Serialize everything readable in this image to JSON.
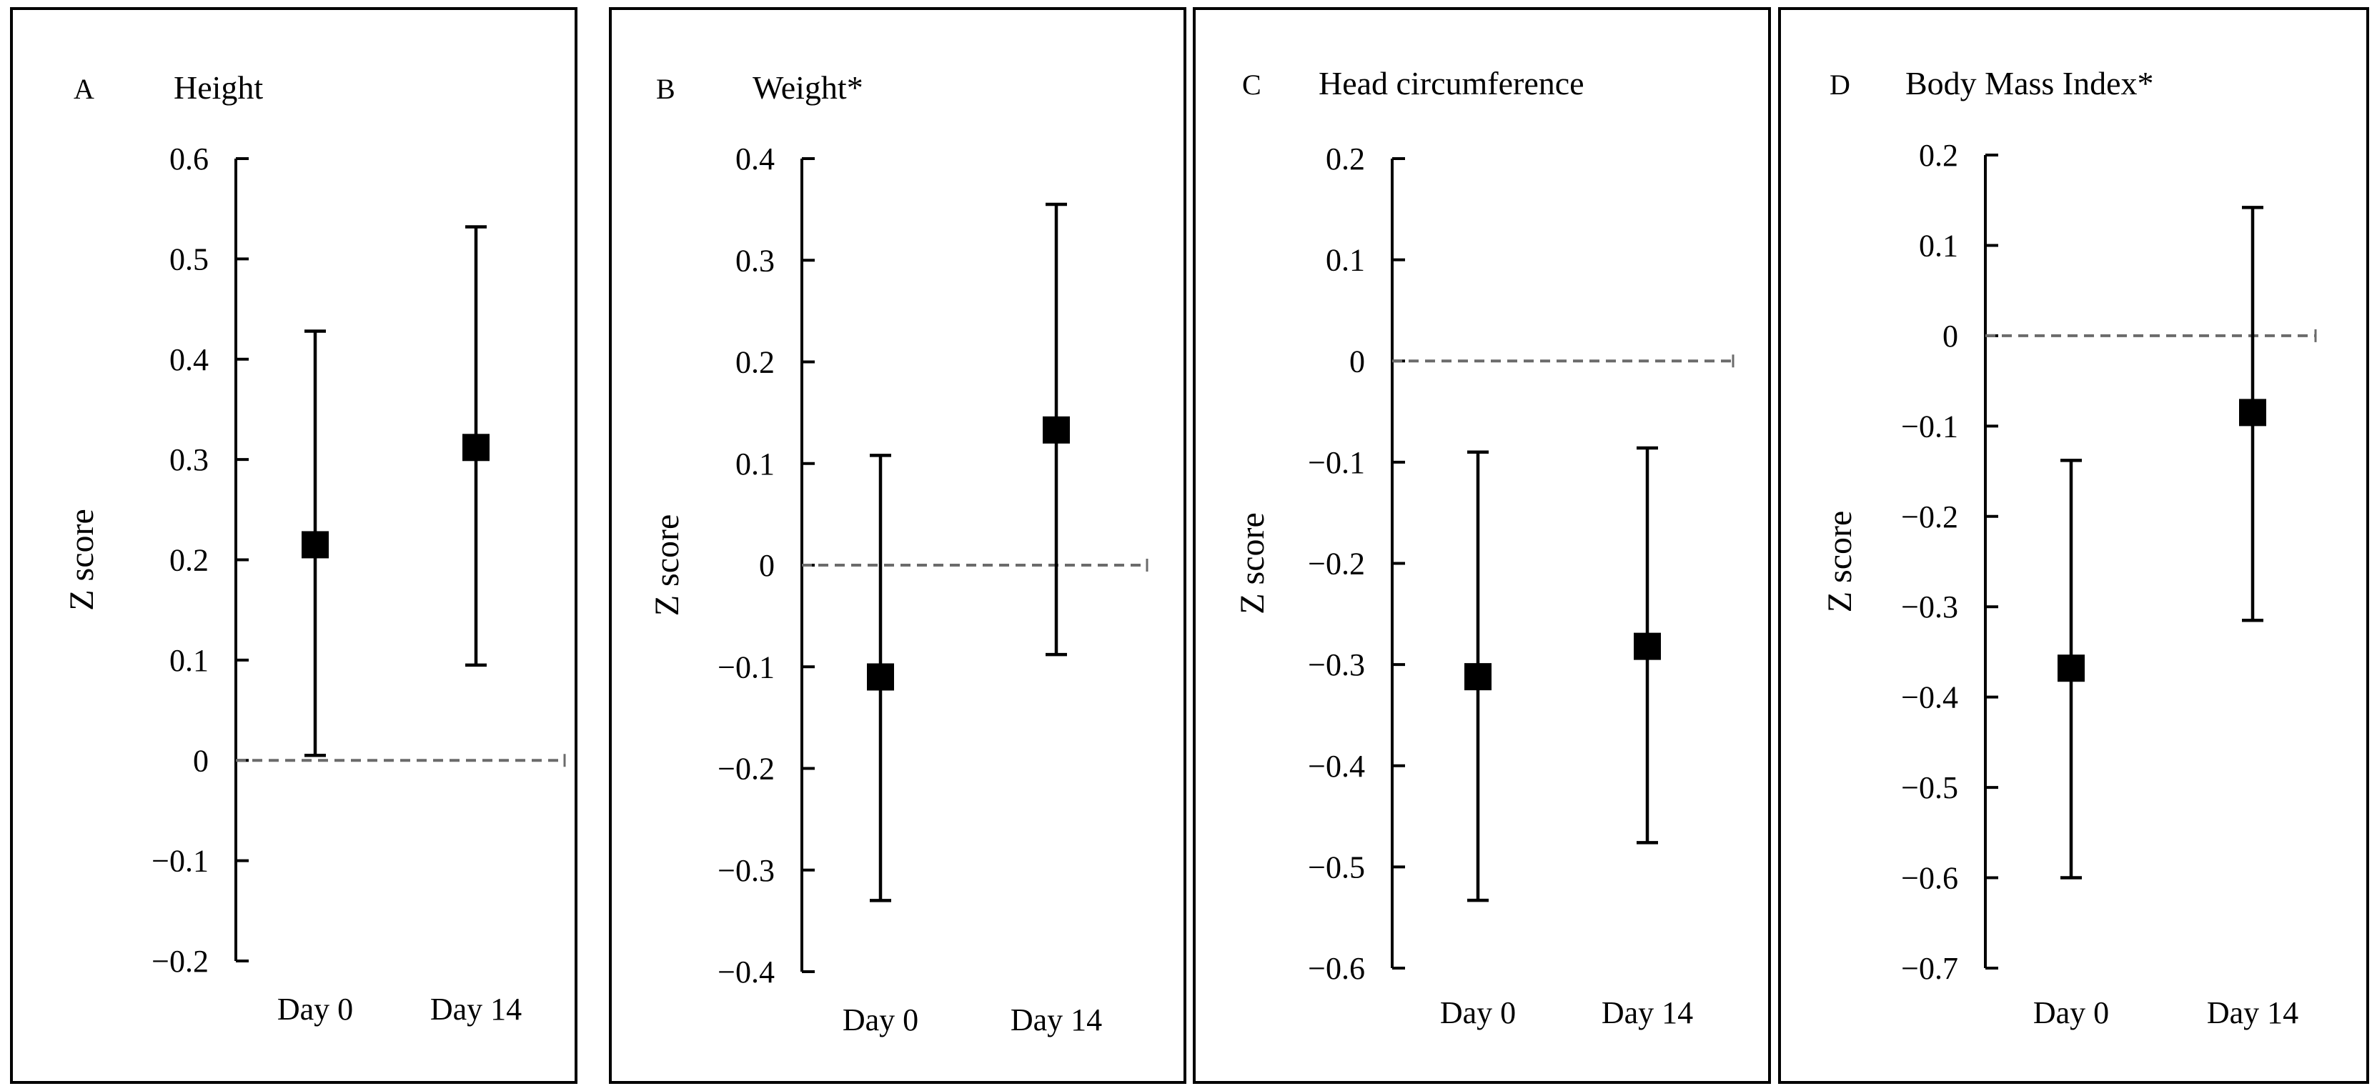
{
  "figure": {
    "y_axis_label": "Z score",
    "colors": {
      "marker": "#000000",
      "reference_line": "#6b6b6b",
      "frame": "#000000"
    }
  },
  "chart_data": [
    {
      "type": "scatter",
      "letter": "A",
      "title": "Height",
      "xlabel": "",
      "ylabel": "Z score",
      "categories": [
        "Day 0",
        "Day 14"
      ],
      "values": [
        0.215,
        0.312
      ],
      "ci_lower": [
        0.005,
        0.095
      ],
      "ci_upper": [
        0.428,
        0.532
      ],
      "ylim": [
        -0.2,
        0.6
      ],
      "yticks": [
        0.6,
        0.5,
        0.4,
        0.3,
        0.2,
        0.1,
        0,
        -0.1,
        -0.2
      ],
      "ytick_labels": [
        "0.6",
        "0.5",
        "0.4",
        "0.3",
        "0.2",
        "0.1",
        "0",
        "−0.1",
        "−0.2"
      ],
      "reference_line": 0
    },
    {
      "type": "scatter",
      "letter": "B",
      "title": "Weight*",
      "xlabel": "",
      "ylabel": "Z score",
      "categories": [
        "Day 0",
        "Day 14"
      ],
      "values": [
        -0.11,
        0.133
      ],
      "ci_lower": [
        -0.33,
        -0.088
      ],
      "ci_upper": [
        0.108,
        0.355
      ],
      "ylim": [
        -0.4,
        0.4
      ],
      "yticks": [
        0.4,
        0.3,
        0.2,
        0.1,
        0,
        -0.1,
        -0.2,
        -0.3,
        -0.4
      ],
      "ytick_labels": [
        "0.4",
        "0.3",
        "0.2",
        "0.1",
        "0",
        "−0.1",
        "−0.2",
        "−0.3",
        "−0.4"
      ],
      "reference_line": 0
    },
    {
      "type": "scatter",
      "letter": "C",
      "title": "Head circumference",
      "xlabel": "",
      "ylabel": "Z score",
      "categories": [
        "Day 0",
        "Day 14"
      ],
      "values": [
        -0.312,
        -0.282
      ],
      "ci_lower": [
        -0.533,
        -0.476
      ],
      "ci_upper": [
        -0.09,
        -0.086
      ],
      "ylim": [
        -0.6,
        0.2
      ],
      "yticks": [
        0.2,
        0.1,
        0,
        -0.1,
        -0.2,
        -0.3,
        -0.4,
        -0.5,
        -0.6
      ],
      "ytick_labels": [
        "0.2",
        "0.1",
        "0",
        "−0.1",
        "−0.2",
        "−0.3",
        "−0.4",
        "−0.5",
        "−0.6"
      ],
      "reference_line": 0
    },
    {
      "type": "scatter",
      "letter": "D",
      "title": "Body Mass Index*",
      "xlabel": "",
      "ylabel": "Z score",
      "categories": [
        "Day 0",
        "Day 14"
      ],
      "values": [
        -0.368,
        -0.085
      ],
      "ci_lower": [
        -0.6,
        -0.315
      ],
      "ci_upper": [
        -0.138,
        0.142
      ],
      "ylim": [
        -0.7,
        0.2
      ],
      "yticks": [
        0.2,
        0.1,
        0,
        -0.1,
        -0.2,
        -0.3,
        -0.4,
        -0.5,
        -0.6,
        -0.7
      ],
      "ytick_labels": [
        "0.2",
        "0.1",
        "0",
        "−0.1",
        "−0.2",
        "−0.3",
        "−0.4",
        "−0.5",
        "−0.6",
        "−0.7"
      ],
      "reference_line": 0
    }
  ]
}
